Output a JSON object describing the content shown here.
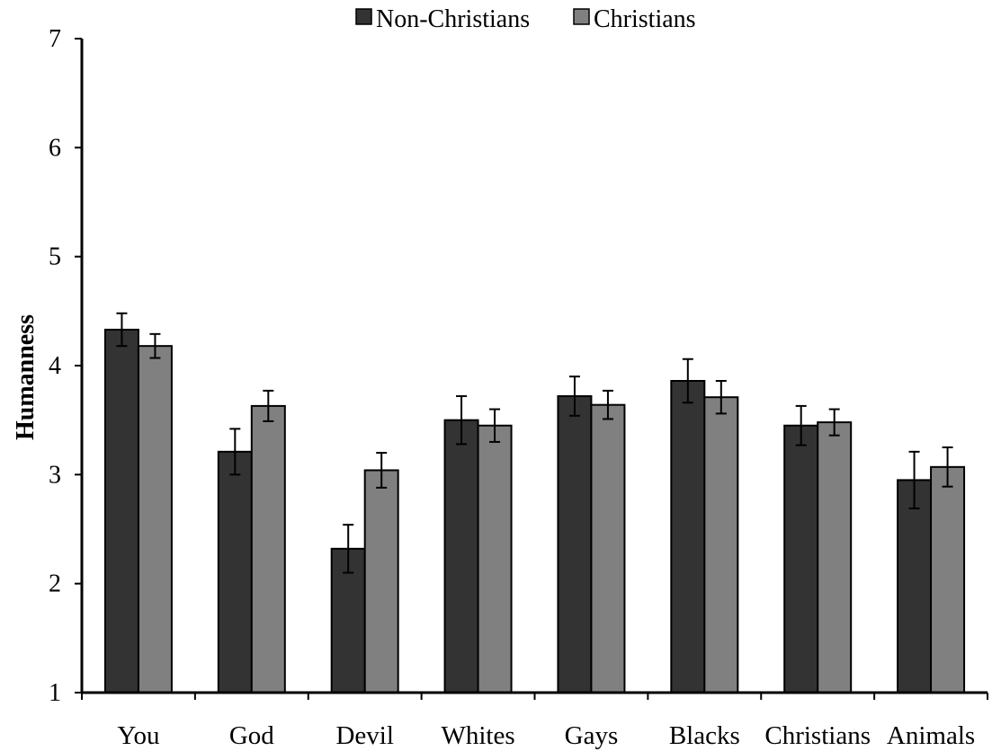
{
  "chart_data": {
    "type": "bar",
    "categories": [
      "You",
      "God",
      "Devil",
      "Whites",
      "Gays",
      "Blacks",
      "Christians",
      "Animals"
    ],
    "series": [
      {
        "name": "Non-Christians",
        "values": [
          4.33,
          3.21,
          2.32,
          3.5,
          3.72,
          3.86,
          3.45,
          2.95
        ],
        "error": [
          0.15,
          0.21,
          0.22,
          0.22,
          0.18,
          0.2,
          0.18,
          0.26
        ]
      },
      {
        "name": "Christians",
        "values": [
          4.18,
          3.63,
          3.04,
          3.45,
          3.64,
          3.71,
          3.48,
          3.07
        ],
        "error": [
          0.11,
          0.14,
          0.16,
          0.15,
          0.13,
          0.15,
          0.12,
          0.18
        ]
      }
    ],
    "xlabel": "",
    "ylabel": "Humanness",
    "ylim": [
      1,
      7
    ],
    "yticks": [
      "1",
      "2",
      "3",
      "4",
      "5",
      "6",
      "7"
    ],
    "legend_position": "top-center",
    "grid": false,
    "colors": {
      "Non-Christians": "#333333",
      "Christians": "#808080"
    }
  }
}
